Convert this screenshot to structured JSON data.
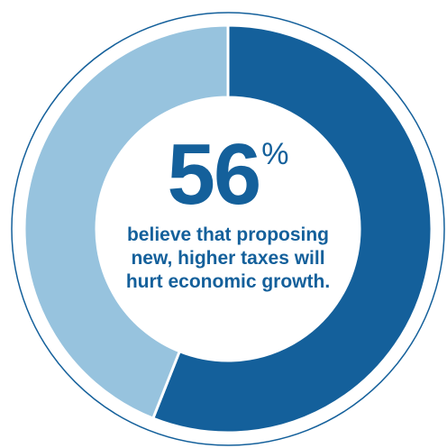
{
  "chart_data": {
    "type": "pie",
    "donut": true,
    "slices": [
      {
        "value": 56
      },
      {
        "value": 44
      }
    ],
    "colors": [
      "#14609b",
      "#97c3de"
    ],
    "outline_color": "#14609b",
    "callout": {
      "value": "56",
      "unit": "%",
      "caption_lines": [
        "believe that proposing",
        "new, higher taxes will",
        "hurt economic growth."
      ]
    }
  }
}
